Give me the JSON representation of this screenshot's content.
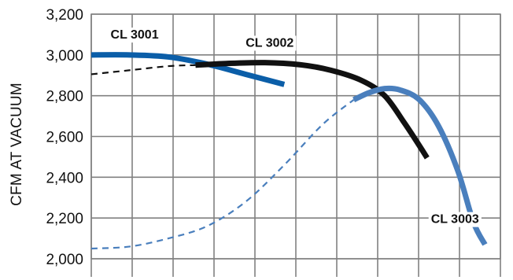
{
  "chart_data": {
    "type": "line",
    "title": "",
    "xlabel": "",
    "ylabel": "CFM AT VACUUM",
    "ylim": [
      2000,
      3200
    ],
    "yticks": [
      2000,
      2200,
      2400,
      2600,
      2800,
      3000,
      3200
    ],
    "ytick_labels": [
      "2,000",
      "2,200",
      "2,400",
      "2,600",
      "2,800",
      "3,000",
      "3,200"
    ],
    "xlim": [
      0,
      10.6
    ],
    "x_gridlines": 10,
    "grid": true,
    "colors": {
      "grid": "#808080",
      "cl3001": "#0b5ea8",
      "cl3002": "#111111",
      "cl3003": "#4a7fbd"
    },
    "series": [
      {
        "name": "CL 3001",
        "extension_dashed": false,
        "solid_points": [
          [
            0.0,
            3000
          ],
          [
            1.0,
            3000
          ],
          [
            2.0,
            2990
          ],
          [
            3.0,
            2955
          ],
          [
            4.0,
            2905
          ],
          [
            5.0,
            2855
          ]
        ]
      },
      {
        "name": "CL 3002",
        "dashed_points": [
          [
            0.0,
            2905
          ],
          [
            1.0,
            2925
          ],
          [
            2.0,
            2945
          ],
          [
            2.7,
            2950
          ]
        ],
        "solid_points": [
          [
            2.7,
            2950
          ],
          [
            3.5,
            2958
          ],
          [
            4.5,
            2962
          ],
          [
            5.4,
            2952
          ],
          [
            6.2,
            2925
          ],
          [
            7.0,
            2875
          ],
          [
            7.6,
            2800
          ],
          [
            8.1,
            2670
          ],
          [
            8.5,
            2555
          ],
          [
            8.7,
            2495
          ]
        ]
      },
      {
        "name": "CL 3003",
        "dashed_points": [
          [
            0.0,
            2050
          ],
          [
            1.0,
            2060
          ],
          [
            2.0,
            2100
          ],
          [
            3.0,
            2160
          ],
          [
            4.0,
            2280
          ],
          [
            5.0,
            2460
          ],
          [
            6.0,
            2660
          ],
          [
            6.8,
            2780
          ]
        ],
        "solid_points": [
          [
            6.8,
            2780
          ],
          [
            7.2,
            2815
          ],
          [
            7.6,
            2835
          ],
          [
            8.0,
            2828
          ],
          [
            8.5,
            2780
          ],
          [
            9.0,
            2650
          ],
          [
            9.5,
            2430
          ],
          [
            9.9,
            2180
          ],
          [
            10.2,
            2070
          ]
        ]
      }
    ],
    "series_labels": [
      {
        "name": "CL 3001",
        "x": 0.5,
        "y": 3080
      },
      {
        "name": "CL 3002",
        "x": 4.0,
        "y": 3040
      },
      {
        "name": "CL 3003",
        "x": 8.8,
        "y": 2175
      }
    ]
  }
}
